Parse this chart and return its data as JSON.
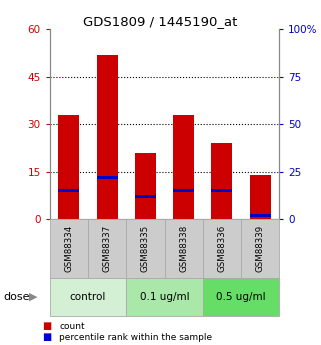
{
  "title": "GDS1809 / 1445190_at",
  "samples": [
    "GSM88334",
    "GSM88337",
    "GSM88335",
    "GSM88338",
    "GSM88336",
    "GSM88339"
  ],
  "bar_heights": [
    33,
    52,
    21,
    33,
    24,
    14
  ],
  "percentile_vals": [
    15,
    22,
    12,
    15,
    15,
    2
  ],
  "groups": [
    {
      "label": "control",
      "start": 0,
      "end": 2,
      "color": "#d4f0d4"
    },
    {
      "label": "0.1 ug/ml",
      "start": 2,
      "end": 4,
      "color": "#aae8aa"
    },
    {
      "label": "0.5 ug/ml",
      "start": 4,
      "end": 6,
      "color": "#66dd66"
    }
  ],
  "bar_color": "#cc0000",
  "percentile_color": "#0000cc",
  "left_ylim": [
    0,
    60
  ],
  "right_ylim": [
    0,
    100
  ],
  "left_yticks": [
    0,
    15,
    30,
    45,
    60
  ],
  "right_yticks": [
    0,
    25,
    50,
    75,
    100
  ],
  "right_yticklabels": [
    "0",
    "25",
    "50",
    "75",
    "100%"
  ],
  "grid_vals": [
    15,
    30,
    45
  ],
  "dose_label": "dose",
  "legend_count": "count",
  "legend_percentile": "percentile rank within the sample",
  "left_tick_color": "#cc0000",
  "right_tick_color": "#0000cc",
  "bar_width": 0.55,
  "sample_bg_color": "#cccccc",
  "sample_border_color": "#aaaaaa",
  "fig_bg_color": "#ffffff"
}
